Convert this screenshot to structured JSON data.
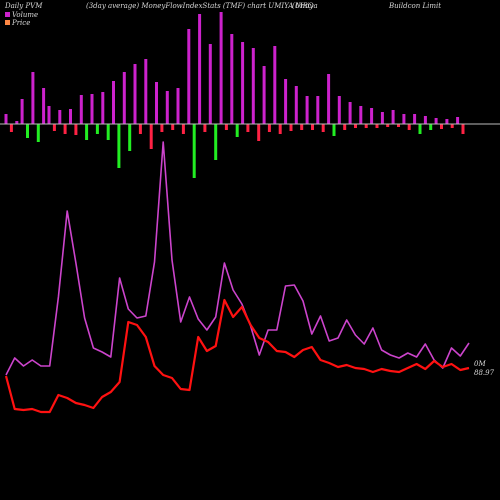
{
  "header": {
    "label_daily": "Daily PVM",
    "label_mid": "(3day average) MoneyFlowIndexStats (TMF) chart UMIYA MRO",
    "label_company": "(Umiya",
    "label_company2": "Buildcon  Limit"
  },
  "legend": {
    "volume": "Volume",
    "price": "Price"
  },
  "readout": {
    "volume_text": "0M",
    "price_text": "88.97"
  },
  "colors": {
    "background": "#000000",
    "up_bar": "#cc22cc",
    "down_bar": "#ff2244",
    "green_bar": "#22ee22",
    "line_volume": "#cc44cc",
    "line_price": "#ff1111",
    "axis_line": "#bbbbbb"
  },
  "chart_data": {
    "type": "bar+line",
    "bars": [
      {
        "v": 10,
        "c": "up"
      },
      {
        "v": -8,
        "c": "down"
      },
      {
        "v": 3,
        "c": "up"
      },
      {
        "v": 25,
        "c": "up"
      },
      {
        "v": -14,
        "c": "green"
      },
      {
        "v": 52,
        "c": "up"
      },
      {
        "v": -18,
        "c": "green"
      },
      {
        "v": 36,
        "c": "up"
      },
      {
        "v": 18,
        "c": "up"
      },
      {
        "v": -7,
        "c": "down"
      },
      {
        "v": 14,
        "c": "up"
      },
      {
        "v": -10,
        "c": "down"
      },
      {
        "v": 15,
        "c": "up"
      },
      {
        "v": -11,
        "c": "down"
      },
      {
        "v": 29,
        "c": "up"
      },
      {
        "v": -16,
        "c": "green"
      },
      {
        "v": 30,
        "c": "up"
      },
      {
        "v": -10,
        "c": "green"
      },
      {
        "v": 32,
        "c": "up"
      },
      {
        "v": -16,
        "c": "green"
      },
      {
        "v": 43,
        "c": "up"
      },
      {
        "v": -44,
        "c": "green"
      },
      {
        "v": 52,
        "c": "up"
      },
      {
        "v": -27,
        "c": "green"
      },
      {
        "v": 60,
        "c": "up"
      },
      {
        "v": -10,
        "c": "down"
      },
      {
        "v": 65,
        "c": "up"
      },
      {
        "v": -25,
        "c": "down"
      },
      {
        "v": 42,
        "c": "up"
      },
      {
        "v": -8,
        "c": "down"
      },
      {
        "v": 33,
        "c": "up"
      },
      {
        "v": -6,
        "c": "down"
      },
      {
        "v": 36,
        "c": "up"
      },
      {
        "v": -10,
        "c": "down"
      },
      {
        "v": 95,
        "c": "up"
      },
      {
        "v": -54,
        "c": "green"
      },
      {
        "v": 110,
        "c": "up"
      },
      {
        "v": -8,
        "c": "down"
      },
      {
        "v": 80,
        "c": "up"
      },
      {
        "v": -36,
        "c": "green"
      },
      {
        "v": 112,
        "c": "up"
      },
      {
        "v": -6,
        "c": "down"
      },
      {
        "v": 90,
        "c": "up"
      },
      {
        "v": -13,
        "c": "green"
      },
      {
        "v": 82,
        "c": "up"
      },
      {
        "v": -8,
        "c": "down"
      },
      {
        "v": 76,
        "c": "up"
      },
      {
        "v": -17,
        "c": "down"
      },
      {
        "v": 58,
        "c": "up"
      },
      {
        "v": -8,
        "c": "down"
      },
      {
        "v": 78,
        "c": "up"
      },
      {
        "v": -10,
        "c": "down"
      },
      {
        "v": 45,
        "c": "up"
      },
      {
        "v": -7,
        "c": "down"
      },
      {
        "v": 38,
        "c": "up"
      },
      {
        "v": -6,
        "c": "down"
      },
      {
        "v": 28,
        "c": "up"
      },
      {
        "v": -6,
        "c": "down"
      },
      {
        "v": 28,
        "c": "up"
      },
      {
        "v": -8,
        "c": "down"
      },
      {
        "v": 50,
        "c": "up"
      },
      {
        "v": -12,
        "c": "green"
      },
      {
        "v": 28,
        "c": "up"
      },
      {
        "v": -6,
        "c": "down"
      },
      {
        "v": 22,
        "c": "up"
      },
      {
        "v": -4,
        "c": "down"
      },
      {
        "v": 18,
        "c": "up"
      },
      {
        "v": -4,
        "c": "down"
      },
      {
        "v": 16,
        "c": "up"
      },
      {
        "v": -4,
        "c": "down"
      },
      {
        "v": 12,
        "c": "up"
      },
      {
        "v": -3,
        "c": "down"
      },
      {
        "v": 14,
        "c": "up"
      },
      {
        "v": -3,
        "c": "down"
      },
      {
        "v": 10,
        "c": "up"
      },
      {
        "v": -6,
        "c": "down"
      },
      {
        "v": 10,
        "c": "up"
      },
      {
        "v": -10,
        "c": "green"
      },
      {
        "v": 8,
        "c": "up"
      },
      {
        "v": -6,
        "c": "green"
      },
      {
        "v": 6,
        "c": "up"
      },
      {
        "v": -5,
        "c": "down"
      },
      {
        "v": 5,
        "c": "up"
      },
      {
        "v": -4,
        "c": "down"
      },
      {
        "v": 7,
        "c": "up"
      },
      {
        "v": -10,
        "c": "down"
      }
    ],
    "volume_line": [
      375,
      358,
      366,
      360,
      366,
      366,
      297,
      211,
      263,
      318,
      348,
      352,
      357,
      278,
      309,
      318,
      316,
      262,
      142,
      260,
      322,
      297,
      319,
      330,
      317,
      263,
      290,
      304,
      326,
      355,
      330,
      330,
      286,
      285,
      301,
      334,
      316,
      341,
      338,
      320,
      335,
      344,
      328,
      350,
      355,
      358,
      353,
      357,
      344,
      360,
      368,
      348,
      356,
      343
    ],
    "price_line": [
      376,
      409,
      410,
      409,
      412,
      412,
      395,
      398,
      403,
      405,
      408,
      397,
      392,
      382,
      322,
      325,
      337,
      366,
      375,
      378,
      389,
      390,
      337,
      351,
      346,
      300,
      317,
      307,
      325,
      338,
      342,
      351,
      352,
      357,
      350,
      347,
      360,
      363,
      367,
      365,
      368,
      369,
      372,
      369,
      371,
      372,
      368,
      364,
      369,
      361,
      367,
      364,
      370,
      368
    ],
    "volume_ylim": [
      0,
      140
    ],
    "price_ylim": [
      80,
      110
    ]
  }
}
